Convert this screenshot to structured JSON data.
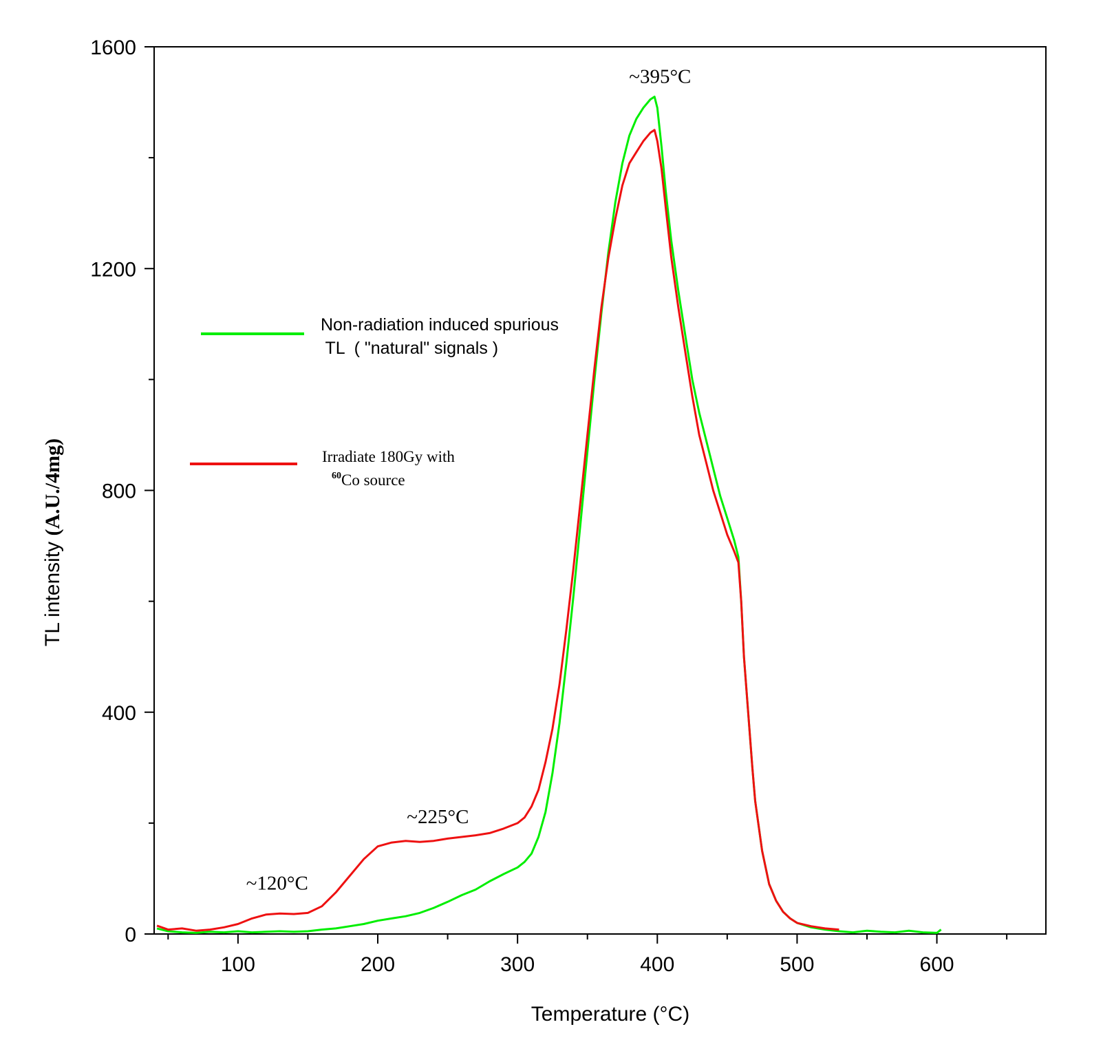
{
  "chart_data": {
    "type": "line",
    "title": "",
    "xlabel": "Temperature (°C)",
    "ylabel_prefix": "TL intensity ",
    "ylabel_unit": "(A.U./4mg)",
    "xlim": [
      40,
      678
    ],
    "ylim": [
      0,
      1600
    ],
    "x_ticks": [
      100,
      200,
      300,
      400,
      500,
      600
    ],
    "y_ticks": [
      0,
      400,
      800,
      1200,
      1600
    ],
    "x_tick_labels": [
      "100",
      "200",
      "300",
      "400",
      "500",
      "600"
    ],
    "y_tick_labels": [
      "0",
      "400",
      "800",
      "1200",
      "1600"
    ],
    "grid": false,
    "legend_position": "upper-left",
    "series": [
      {
        "name": "Non-radiation induced spurious TL ( \"natural\" signals )",
        "legend_line1": "Non-radiation induced spurious",
        "legend_line2": " TL  ( \"natural\" signals )",
        "color": "#00ee00",
        "x": [
          42,
          50,
          60,
          70,
          80,
          90,
          100,
          110,
          120,
          130,
          140,
          150,
          160,
          170,
          180,
          190,
          200,
          210,
          220,
          230,
          240,
          250,
          260,
          270,
          280,
          290,
          300,
          305,
          310,
          315,
          320,
          325,
          330,
          335,
          340,
          345,
          350,
          355,
          360,
          365,
          370,
          375,
          380,
          385,
          390,
          395,
          398,
          400,
          403,
          406,
          410,
          415,
          420,
          425,
          430,
          435,
          440,
          445,
          450,
          455,
          458,
          460,
          462,
          465,
          468,
          470,
          475,
          480,
          485,
          490,
          495,
          500,
          510,
          520,
          530,
          540,
          550,
          560,
          570,
          580,
          590,
          600,
          603
        ],
        "values": [
          10,
          5,
          3,
          2,
          4,
          3,
          5,
          3,
          4,
          5,
          4,
          5,
          8,
          10,
          14,
          18,
          24,
          28,
          32,
          38,
          47,
          58,
          70,
          80,
          95,
          108,
          120,
          130,
          145,
          175,
          220,
          290,
          380,
          490,
          610,
          740,
          870,
          1000,
          1120,
          1230,
          1320,
          1390,
          1440,
          1470,
          1490,
          1505,
          1510,
          1490,
          1420,
          1340,
          1250,
          1160,
          1080,
          1000,
          940,
          890,
          840,
          790,
          750,
          710,
          680,
          600,
          500,
          400,
          300,
          240,
          150,
          90,
          60,
          40,
          28,
          20,
          12,
          8,
          5,
          3,
          6,
          4,
          3,
          6,
          3,
          2,
          8
        ]
      },
      {
        "name": "Irradiate 180Gy with 60Co source",
        "legend_line1": "Irradiate 180Gy with",
        "legend_sup": "60",
        "legend_line2": "Co source",
        "color": "#ee1111",
        "x": [
          42,
          50,
          60,
          70,
          80,
          90,
          100,
          110,
          120,
          130,
          140,
          150,
          160,
          170,
          180,
          190,
          200,
          210,
          220,
          230,
          240,
          250,
          260,
          270,
          280,
          290,
          300,
          305,
          310,
          315,
          320,
          325,
          330,
          335,
          340,
          345,
          350,
          355,
          360,
          365,
          370,
          375,
          380,
          385,
          390,
          395,
          398,
          400,
          403,
          406,
          410,
          415,
          420,
          425,
          430,
          435,
          440,
          445,
          450,
          455,
          458,
          460,
          462,
          465,
          468,
          470,
          475,
          480,
          485,
          490,
          495,
          500,
          510,
          520,
          530
        ],
        "values": [
          15,
          8,
          10,
          6,
          8,
          12,
          18,
          28,
          35,
          37,
          36,
          38,
          50,
          75,
          105,
          135,
          158,
          165,
          168,
          166,
          168,
          172,
          175,
          178,
          182,
          190,
          200,
          210,
          230,
          260,
          310,
          370,
          450,
          550,
          660,
          780,
          900,
          1020,
          1130,
          1220,
          1290,
          1350,
          1390,
          1410,
          1430,
          1445,
          1450,
          1430,
          1380,
          1310,
          1220,
          1130,
          1050,
          970,
          900,
          850,
          800,
          760,
          720,
          690,
          670,
          600,
          500,
          400,
          300,
          240,
          150,
          90,
          60,
          40,
          28,
          20,
          14,
          10,
          8
        ]
      }
    ],
    "annotations": [
      {
        "text": "~395°C",
        "x": 402,
        "y": 1535
      },
      {
        "text": "~225°C",
        "x": 243,
        "y": 200
      },
      {
        "text": "~120°C",
        "x": 128,
        "y": 80
      }
    ]
  }
}
